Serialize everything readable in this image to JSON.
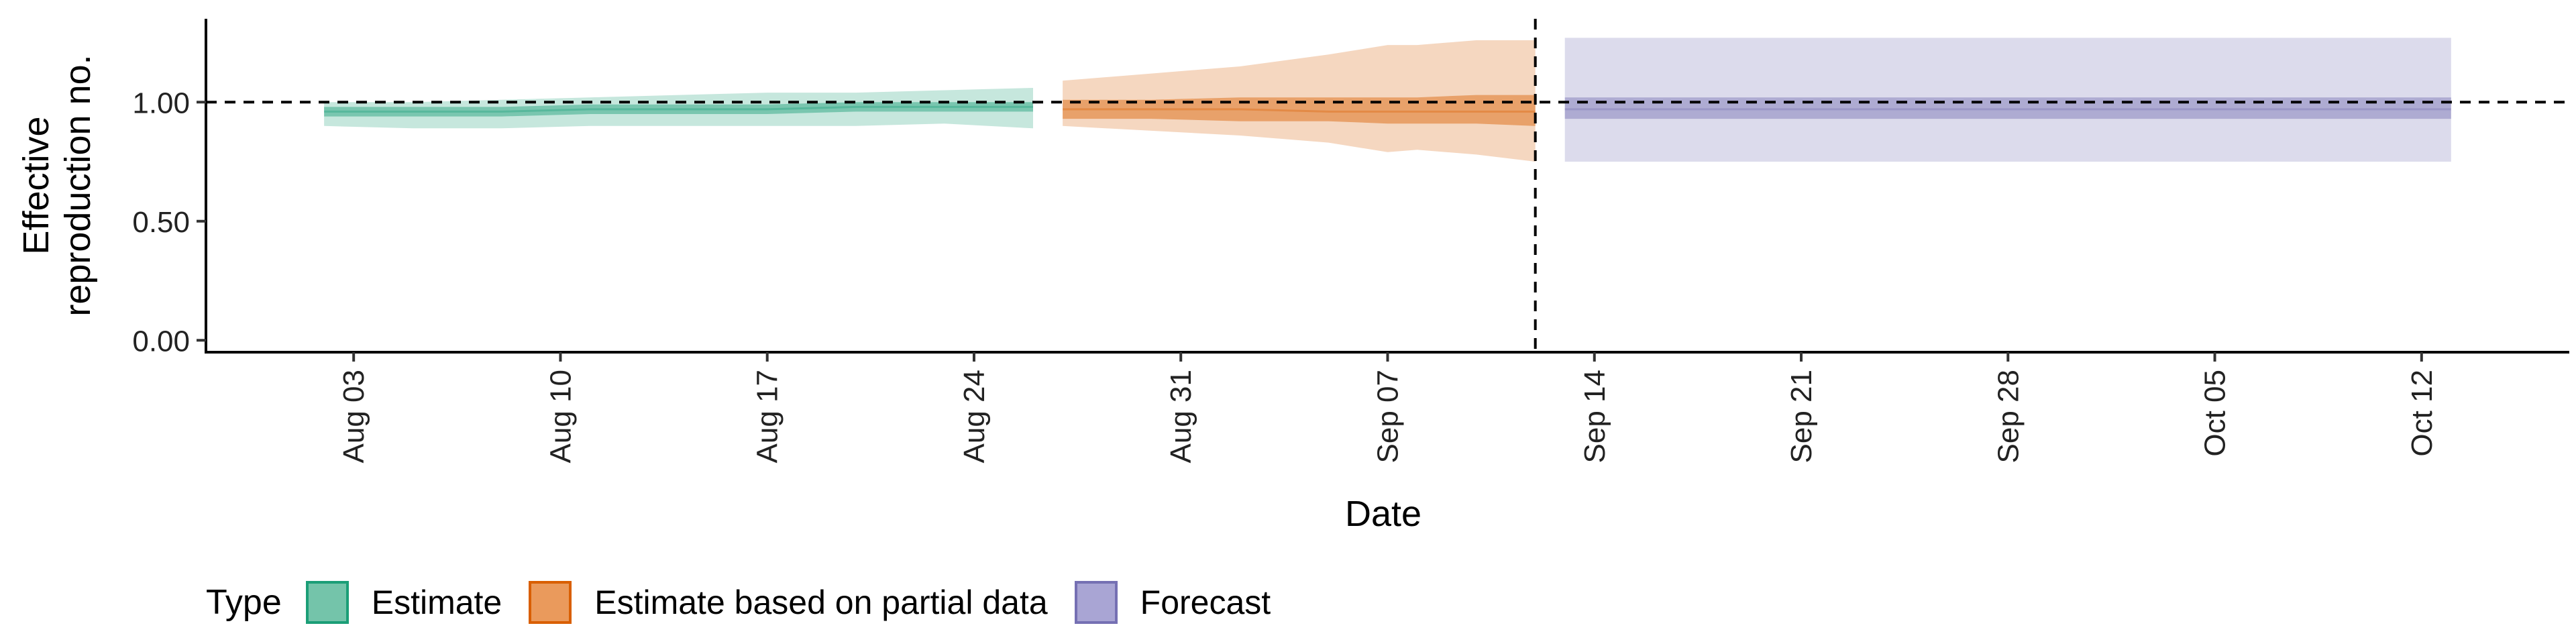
{
  "chart_data": {
    "type": "area",
    "xlabel": "Date",
    "ylabel_lines": [
      "Effective",
      "reproduction no."
    ],
    "y_ticks": [
      "0.00",
      "0.50",
      "1.00"
    ],
    "y_tick_values": [
      0,
      0.5,
      1.0
    ],
    "ylim": [
      -0.05,
      1.35
    ],
    "xlim": [
      "2020-07-29",
      "2020-10-17"
    ],
    "x_ticks": [
      {
        "date": "2020-08-03",
        "label": "Aug 03"
      },
      {
        "date": "2020-08-10",
        "label": "Aug 10"
      },
      {
        "date": "2020-08-17",
        "label": "Aug 17"
      },
      {
        "date": "2020-08-24",
        "label": "Aug 24"
      },
      {
        "date": "2020-08-31",
        "label": "Aug 31"
      },
      {
        "date": "2020-09-07",
        "label": "Sep 07"
      },
      {
        "date": "2020-09-14",
        "label": "Sep 14"
      },
      {
        "date": "2020-09-21",
        "label": "Sep 21"
      },
      {
        "date": "2020-09-28",
        "label": "Sep 28"
      },
      {
        "date": "2020-10-05",
        "label": "Oct 05"
      },
      {
        "date": "2020-10-12",
        "label": "Oct 12"
      }
    ],
    "reference_line_y": 1.0,
    "vertical_line_date": "2020-09-12",
    "grid": false,
    "legend_position": "bottom",
    "legend_title": "Type",
    "series": [
      {
        "name": "Estimate",
        "color": "#1b9e77",
        "dates": [
          "2020-08-02",
          "2020-08-05",
          "2020-08-08",
          "2020-08-11",
          "2020-08-14",
          "2020-08-17",
          "2020-08-20",
          "2020-08-23",
          "2020-08-26"
        ],
        "outer_low": [
          0.9,
          0.89,
          0.89,
          0.9,
          0.9,
          0.9,
          0.9,
          0.91,
          0.89
        ],
        "outer_high": [
          1.0,
          1.0,
          1.01,
          1.02,
          1.03,
          1.04,
          1.04,
          1.05,
          1.06
        ],
        "inner_low": [
          0.94,
          0.94,
          0.94,
          0.95,
          0.95,
          0.95,
          0.96,
          0.96,
          0.96
        ],
        "inner_high": [
          0.98,
          0.98,
          0.98,
          0.99,
          0.99,
          0.99,
          1.0,
          1.0,
          1.0
        ],
        "median": [
          0.96,
          0.96,
          0.96,
          0.97,
          0.97,
          0.97,
          0.98,
          0.98,
          0.98
        ]
      },
      {
        "name": "Estimate based on partial data",
        "color": "#d95f02",
        "dates": [
          "2020-08-27",
          "2020-08-30",
          "2020-09-02",
          "2020-09-05",
          "2020-09-07",
          "2020-09-08",
          "2020-09-10",
          "2020-09-12"
        ],
        "outer_low": [
          0.9,
          0.88,
          0.86,
          0.83,
          0.79,
          0.8,
          0.78,
          0.75
        ],
        "outer_high": [
          1.09,
          1.12,
          1.15,
          1.2,
          1.24,
          1.24,
          1.26,
          1.26
        ],
        "inner_low": [
          0.93,
          0.93,
          0.92,
          0.92,
          0.91,
          0.91,
          0.91,
          0.9
        ],
        "inner_high": [
          1.01,
          1.01,
          1.02,
          1.02,
          1.02,
          1.02,
          1.03,
          1.03
        ],
        "median": [
          0.97,
          0.97,
          0.97,
          0.96,
          0.96,
          0.96,
          0.96,
          0.96
        ]
      },
      {
        "name": "Forecast",
        "color": "#7570b3",
        "dates": [
          "2020-09-13",
          "2020-10-13"
        ],
        "outer_low": [
          0.75,
          0.75
        ],
        "outer_high": [
          1.27,
          1.27
        ],
        "inner_low": [
          0.93,
          0.93
        ],
        "inner_high": [
          1.02,
          1.02
        ],
        "median": [
          0.97,
          0.97
        ]
      }
    ]
  },
  "legend": {
    "title": "Type",
    "items": [
      {
        "label": "Estimate",
        "fill": "#74c4aa",
        "border": "#1b9e77"
      },
      {
        "label": "Estimate based on partial data",
        "fill": "#ea9a5c",
        "border": "#d95f02"
      },
      {
        "label": "Forecast",
        "fill": "#a9a5d4",
        "border": "#7570b3"
      }
    ]
  }
}
